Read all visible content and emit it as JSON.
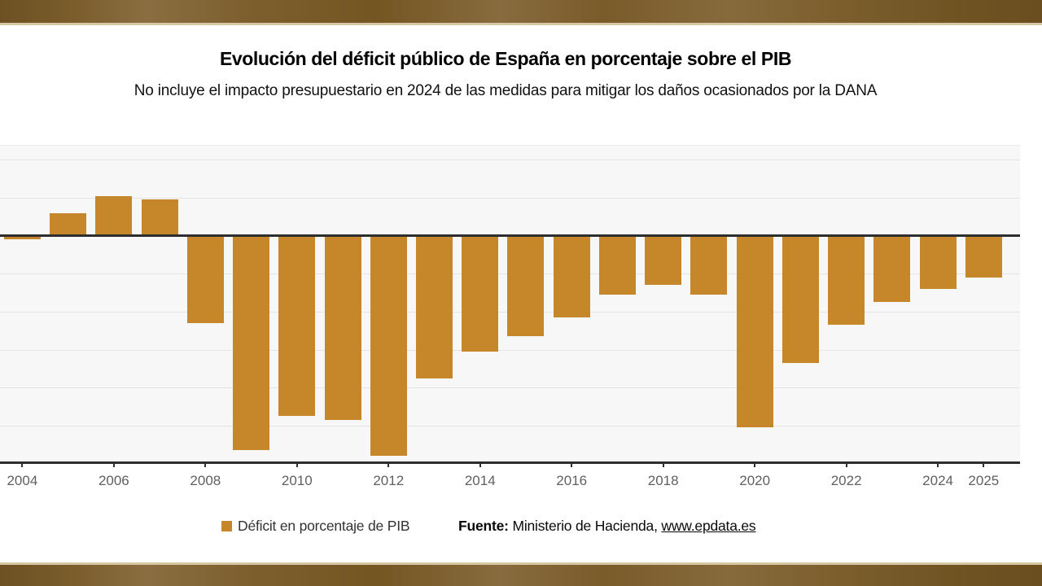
{
  "header": {
    "title": "Evolución del déficit público de España en porcentaje sobre el PIB",
    "subtitle": "No incluye el impacto presupuestario en 2024 de las medidas para mitigar los daños ocasionados por la DANA"
  },
  "chart_data": {
    "type": "bar",
    "title": "Evolución del déficit público de España en porcentaje sobre el PIB",
    "subtitle": "No incluye el impacto presupuestario en 2024 de las medidas para mitigar los daños ocasionados por la DANA",
    "categories": [
      2004,
      2005,
      2006,
      2007,
      2008,
      2009,
      2010,
      2011,
      2012,
      2013,
      2014,
      2015,
      2016,
      2017,
      2018,
      2019,
      2020,
      2021,
      2022,
      2023,
      2024,
      2025
    ],
    "values": [
      -0.2,
      1.2,
      2.1,
      1.9,
      -4.6,
      -11.3,
      -9.5,
      -9.7,
      -11.6,
      -7.5,
      -6.1,
      -5.3,
      -4.3,
      -3.1,
      -2.6,
      -3.1,
      -10.1,
      -6.7,
      -4.7,
      -3.5,
      -2.8,
      -2.2
    ],
    "series_name": "Déficit en porcentaje de PIB",
    "xlabel": "",
    "ylabel": "",
    "ylim": [
      -12,
      4.75
    ],
    "gridline_values": [
      4,
      2,
      -2,
      -4,
      -6,
      -8,
      -10
    ],
    "x_tick_years": [
      2004,
      2006,
      2008,
      2010,
      2012,
      2014,
      2016,
      2018,
      2020,
      2022,
      2024,
      2025
    ],
    "grid": true,
    "legend_position": "bottom",
    "bar_color": "#c6872b",
    "axis_color": "#2e2e2e",
    "grid_color": "#e4e4e4",
    "plot_background": "#f7f7f7",
    "tick_label_color": "#606060"
  },
  "legend": {
    "label": "Déficit en porcentaje de PIB",
    "swatch_color": "#c6872b"
  },
  "source": {
    "prefix": "Fuente:",
    "text": " Ministerio de Hacienda, ",
    "link": "www.epdata.es"
  },
  "colors": {
    "band_brown": "#7a5c2b",
    "band_edge": "#d8c7a3",
    "page_background": "#ffffff"
  }
}
